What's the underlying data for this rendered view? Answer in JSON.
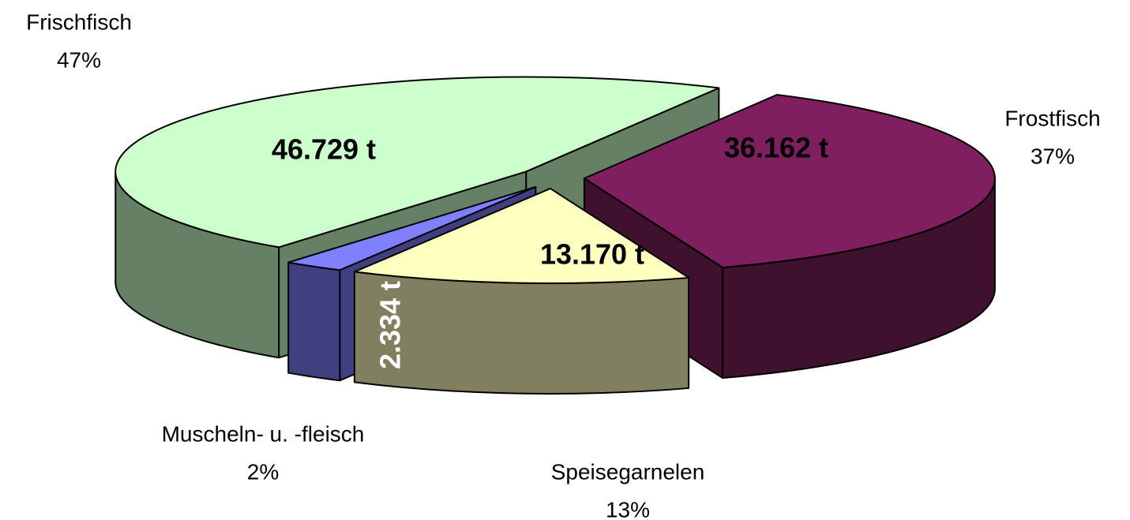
{
  "chart_data": {
    "type": "pie3d",
    "categories": [
      "Frostfisch",
      "Speisegarnelen",
      "Muscheln- u. -fleisch",
      "Frischfisch"
    ],
    "values": [
      36162,
      13170,
      2334,
      46729
    ],
    "value_labels": [
      "36.162 t",
      "13.170 t",
      "2.334 t",
      "46.729 t"
    ],
    "percent_labels": [
      "37%",
      "13%",
      "2%",
      "47%"
    ],
    "colors": [
      "#801f5f",
      "#ffffc0",
      "#8080ff",
      "#ccffcc"
    ],
    "side_colors": [
      "#40102f",
      "#808060",
      "#404080",
      "#668066"
    ],
    "value_label_colors": [
      "#000000",
      "#000000",
      "#ffffff",
      "#000000"
    ]
  }
}
